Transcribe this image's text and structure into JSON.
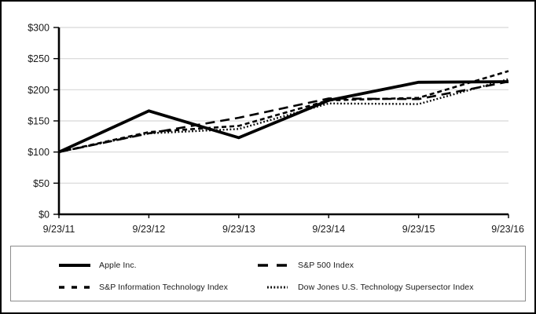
{
  "chart_data": {
    "type": "line",
    "title": "",
    "xlabel": "",
    "ylabel": "",
    "x_labels": [
      "9/23/11",
      "9/23/12",
      "9/23/13",
      "9/23/14",
      "9/23/15",
      "9/23/16"
    ],
    "y_tick_labels": [
      "$0",
      "$50",
      "$100",
      "$150",
      "$200",
      "$250",
      "$300"
    ],
    "y_tick_values": [
      0,
      50,
      100,
      150,
      200,
      250,
      300
    ],
    "ylim": [
      0,
      300
    ],
    "grid": true,
    "legend_position": "bottom",
    "line_color": "#000000",
    "grid_color": "#d7d7d7",
    "axis_color": "#000000",
    "series": [
      {
        "name": "Apple Inc.",
        "values": [
          100,
          166,
          123,
          183,
          212,
          213
        ],
        "style": "solid",
        "dash": "",
        "width": 3.8
      },
      {
        "name": "S&P 500 Index",
        "values": [
          100,
          130,
          155,
          186,
          185,
          213
        ],
        "style": "long-dash",
        "dash": "12 7",
        "width": 2.6
      },
      {
        "name": "S&P Information Technology Index",
        "values": [
          100,
          132,
          142,
          183,
          187,
          230
        ],
        "style": "dash",
        "dash": "6 4",
        "width": 2.6
      },
      {
        "name": "Dow Jones U.S. Technology Supersector Index",
        "values": [
          100,
          130,
          137,
          178,
          177,
          217
        ],
        "style": "dot",
        "dash": "1.8 2.6",
        "width": 2.4
      }
    ]
  }
}
